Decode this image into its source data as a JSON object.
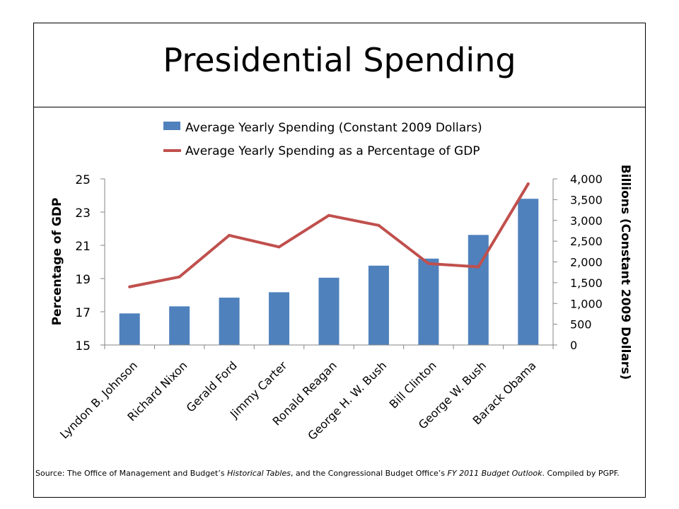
{
  "slide": {
    "title": "Presidential Spending"
  },
  "chart_data": {
    "type": "bar",
    "categories": [
      "Lyndon B. Johnson",
      "Richard Nixon",
      "Gerald Ford",
      "Jimmy Carter",
      "Ronald Reagan",
      "George H. W. Bush",
      "Bill Clinton",
      "George W. Bush",
      "Barack Obama"
    ],
    "series": [
      {
        "name": "Average Yearly Spending (Constant 2009 Dollars)",
        "type": "bar",
        "axis": "right",
        "color": "#4F81BD",
        "values": [
          760,
          930,
          1140,
          1270,
          1620,
          1910,
          2080,
          2650,
          3520
        ]
      },
      {
        "name": "Average Yearly Spending as a Percentage of GDP",
        "type": "line",
        "axis": "left",
        "color": "#C0504D",
        "values": [
          18.5,
          19.1,
          21.6,
          20.9,
          22.8,
          22.2,
          19.9,
          19.7,
          24.7
        ]
      }
    ],
    "ylabel_left": "Percentage of GDP",
    "ylim_left": [
      15,
      25
    ],
    "yticks_left": [
      "15",
      "17",
      "19",
      "21",
      "23",
      "25"
    ],
    "ylabel_right": "Billions (Constant 2009 Dollars)",
    "ylim_right": [
      0,
      4000
    ],
    "yticks_right": [
      "0",
      "500",
      "1,000",
      "1,500",
      "2,000",
      "2,500",
      "3,000",
      "3,500",
      "4,000"
    ],
    "legend": "top",
    "grid": false
  },
  "source": {
    "part1": "Source: The Office of Management and Budget’s ",
    "part2": "Historical Tables",
    "part3": ", and the Congressional Budget Office’s ",
    "part4": "FY 2011 Budget Outlook",
    "part5": ".  Compiled by PGPF."
  }
}
